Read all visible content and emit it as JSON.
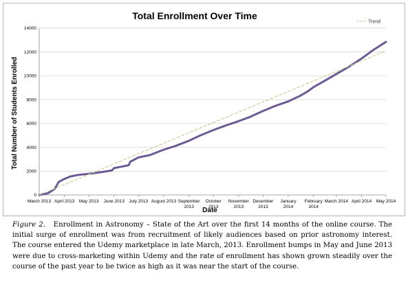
{
  "chart_data": {
    "type": "line",
    "title": "Total Enrollment Over Time",
    "xlabel": "Date",
    "ylabel": "Total Number of Students Enrolled",
    "ylim": [
      0,
      14000
    ],
    "yticks": [
      0,
      2000,
      4000,
      6000,
      8000,
      10000,
      12000,
      14000
    ],
    "xlim": [
      "2013-03-01",
      "2014-05-01"
    ],
    "xticks": [
      {
        "date": "2013-03-01",
        "label": [
          "March 2013"
        ]
      },
      {
        "date": "2013-04-01",
        "label": [
          "April 2013"
        ]
      },
      {
        "date": "2013-05-01",
        "label": [
          "May 2013"
        ]
      },
      {
        "date": "2013-06-01",
        "label": [
          "June 2013"
        ]
      },
      {
        "date": "2013-07-01",
        "label": [
          "July 2013"
        ]
      },
      {
        "date": "2013-08-01",
        "label": [
          "August 2013"
        ]
      },
      {
        "date": "2013-09-01",
        "label": [
          "September",
          "2013"
        ]
      },
      {
        "date": "2013-10-01",
        "label": [
          "October",
          "2013"
        ]
      },
      {
        "date": "2013-11-01",
        "label": [
          "November",
          "2013"
        ]
      },
      {
        "date": "2013-12-01",
        "label": [
          "December",
          "2013"
        ]
      },
      {
        "date": "2014-01-01",
        "label": [
          "January",
          "2014"
        ]
      },
      {
        "date": "2014-02-01",
        "label": [
          "February",
          "2014"
        ]
      },
      {
        "date": "2014-03-01",
        "label": [
          "March 2014"
        ]
      },
      {
        "date": "2014-04-01",
        "label": [
          "April 2014"
        ]
      },
      {
        "date": "2014-05-01",
        "label": [
          "May 2014"
        ]
      }
    ],
    "grid": "horizontal",
    "legend_position": "top-right",
    "series": [
      {
        "kind": "enrollment",
        "color": "#6b5a93",
        "points": [
          {
            "x": "2013-03-01",
            "y": 0
          },
          {
            "x": "2013-03-12",
            "y": 150
          },
          {
            "x": "2013-03-20",
            "y": 500
          },
          {
            "x": "2013-03-25",
            "y": 1100
          },
          {
            "x": "2013-04-01",
            "y": 1350
          },
          {
            "x": "2013-04-08",
            "y": 1550
          },
          {
            "x": "2013-04-18",
            "y": 1680
          },
          {
            "x": "2013-05-01",
            "y": 1780
          },
          {
            "x": "2013-05-15",
            "y": 1900
          },
          {
            "x": "2013-05-29",
            "y": 2050
          },
          {
            "x": "2013-06-01",
            "y": 2250
          },
          {
            "x": "2013-06-12",
            "y": 2400
          },
          {
            "x": "2013-06-19",
            "y": 2500
          },
          {
            "x": "2013-06-21",
            "y": 2800
          },
          {
            "x": "2013-07-01",
            "y": 3150
          },
          {
            "x": "2013-07-15",
            "y": 3350
          },
          {
            "x": "2013-08-01",
            "y": 3800
          },
          {
            "x": "2013-08-15",
            "y": 4100
          },
          {
            "x": "2013-09-01",
            "y": 4550
          },
          {
            "x": "2013-09-15",
            "y": 5000
          },
          {
            "x": "2013-10-01",
            "y": 5450
          },
          {
            "x": "2013-10-15",
            "y": 5800
          },
          {
            "x": "2013-11-01",
            "y": 6200
          },
          {
            "x": "2013-11-15",
            "y": 6550
          },
          {
            "x": "2013-12-01",
            "y": 7050
          },
          {
            "x": "2013-12-15",
            "y": 7450
          },
          {
            "x": "2014-01-01",
            "y": 7850
          },
          {
            "x": "2014-01-15",
            "y": 8300
          },
          {
            "x": "2014-01-25",
            "y": 8700
          },
          {
            "x": "2014-02-01",
            "y": 9050
          },
          {
            "x": "2014-02-15",
            "y": 9600
          },
          {
            "x": "2014-03-01",
            "y": 10150
          },
          {
            "x": "2014-03-15",
            "y": 10700
          },
          {
            "x": "2014-04-01",
            "y": 11450
          },
          {
            "x": "2014-04-15",
            "y": 12150
          },
          {
            "x": "2014-05-01",
            "y": 12850
          }
        ]
      },
      {
        "kind": "trend",
        "name": "Trend",
        "color": "#c8d19a",
        "dashed": true,
        "points": [
          {
            "x": "2013-03-01",
            "y": 0
          },
          {
            "x": "2014-05-01",
            "y": 12100
          }
        ]
      }
    ]
  },
  "caption": {
    "label": "Figure 2.",
    "text": "Enrollment in Astronomy – State of the Art over the first 14 months of the online course. The initial surge of enrollment was from recruitment of likely audiences based on prior astronomy interest. The course entered the Udemy marketplace in late March, 2013. Enrollment bumps in May and June 2013 were due to cross-marketing within Udemy and the rate of enrollment has shown grown steadily over the course of the past year to be twice as high as it was near the start of the course."
  }
}
